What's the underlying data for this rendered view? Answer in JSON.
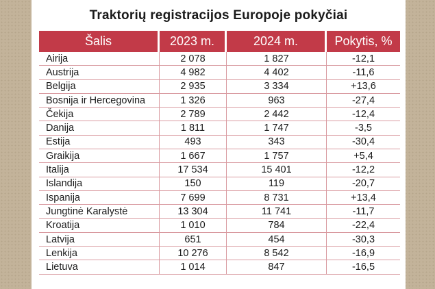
{
  "title": "Traktorių registracijos Europoje pokyčiai",
  "columns": [
    "Šalis",
    "2023 m.",
    "2024 m.",
    "Pokytis, %"
  ],
  "rows": [
    [
      "Airija",
      "2 078",
      "1 827",
      "-12,1"
    ],
    [
      "Austrija",
      "4 982",
      "4 402",
      "-11,6"
    ],
    [
      "Belgija",
      "2 935",
      "3 334",
      "+13,6"
    ],
    [
      "Bosnija ir Hercegovina",
      "1 326",
      "963",
      "-27,4"
    ],
    [
      "Čekija",
      "2 789",
      "2 442",
      "-12,4"
    ],
    [
      "Danija",
      "1 811",
      "1 747",
      "-3,5"
    ],
    [
      "Estija",
      "493",
      "343",
      "-30,4"
    ],
    [
      "Graikija",
      "1 667",
      "1 757",
      "+5,4"
    ],
    [
      "Italija",
      "17 534",
      "15 401",
      "-12,2"
    ],
    [
      "Islandija",
      "150",
      "119",
      "-20,7"
    ],
    [
      "Ispanija",
      "7 699",
      "8 731",
      "+13,4"
    ],
    [
      "Jungtinė Karalystė",
      "13 304",
      "11 741",
      "-11,7"
    ],
    [
      "Kroatija",
      "1 010",
      "784",
      "-22,4"
    ],
    [
      "Latvija",
      "651",
      "454",
      "-30,3"
    ],
    [
      "Lenkija",
      "10 276",
      "8 542",
      "-16,9"
    ],
    [
      "Lietuva",
      "1 014",
      "847",
      "-16,5"
    ]
  ],
  "colors": {
    "header_bg": "#c23a48",
    "header_text": "#ffffff",
    "row_border": "#d99aa0",
    "background": "#c3b39a"
  }
}
